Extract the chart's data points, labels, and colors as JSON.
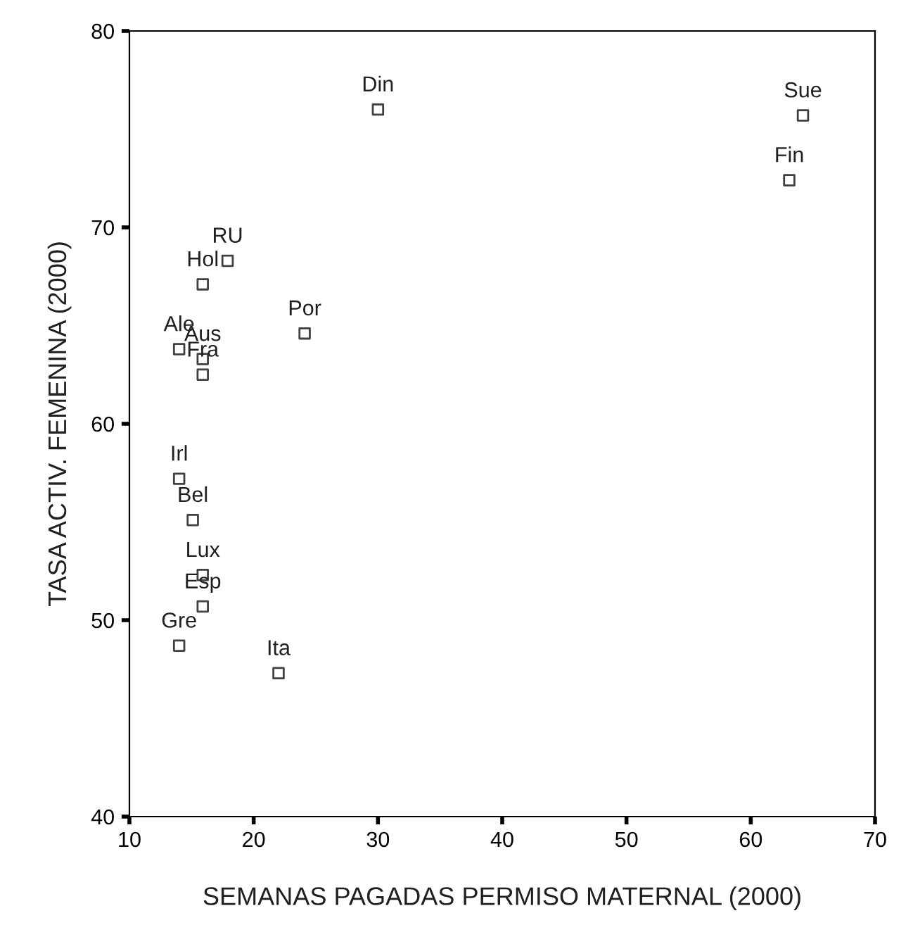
{
  "chart_data": {
    "type": "scatter",
    "xlabel": "SEMANAS PAGADAS PERMISO MATERNAL (2000)",
    "ylabel": "TASA ACTIV. FEMENINA (2000)",
    "x": [
      30,
      64.2,
      63.1,
      17.9,
      15.9,
      24.1,
      14.0,
      15.9,
      15.9,
      14.0,
      15.1,
      15.9,
      15.9,
      14.0,
      22.0
    ],
    "series": [
      {
        "color": "#404040",
        "values": [
          76.0,
          75.7,
          72.4,
          68.3,
          67.1,
          64.6,
          63.8,
          63.3,
          62.5,
          57.2,
          55.1,
          52.3,
          50.7,
          48.7,
          47.3
        ]
      }
    ],
    "annotations": [
      {
        "text": "Din",
        "x": 30,
        "y": 76.0
      },
      {
        "text": "Sue",
        "x": 64.2,
        "y": 75.7
      },
      {
        "text": "Fin",
        "x": 63.1,
        "y": 72.4
      },
      {
        "text": "RU",
        "x": 17.9,
        "y": 68.3
      },
      {
        "text": "Hol",
        "x": 15.9,
        "y": 67.1
      },
      {
        "text": "Por",
        "x": 24.1,
        "y": 64.6
      },
      {
        "text": "Ale",
        "x": 14.0,
        "y": 63.8
      },
      {
        "text": "Aus",
        "x": 15.9,
        "y": 63.3
      },
      {
        "text": "Fra",
        "x": 15.9,
        "y": 62.5
      },
      {
        "text": "Irl",
        "x": 14.0,
        "y": 57.2
      },
      {
        "text": "Bel",
        "x": 15.1,
        "y": 55.1
      },
      {
        "text": "Lux",
        "x": 15.9,
        "y": 52.3
      },
      {
        "text": "Esp",
        "x": 15.9,
        "y": 50.7
      },
      {
        "text": "Gre",
        "x": 14.0,
        "y": 48.7
      },
      {
        "text": "Ita",
        "x": 22.0,
        "y": 47.3
      }
    ],
    "xlim": [
      10,
      70
    ],
    "xticks": [
      10,
      20,
      30,
      40,
      50,
      60,
      70
    ],
    "ylim": [
      40,
      80
    ],
    "yticks": [
      40,
      50,
      60,
      70,
      80
    ],
    "marker": "square",
    "grid": false,
    "legend": false
  }
}
